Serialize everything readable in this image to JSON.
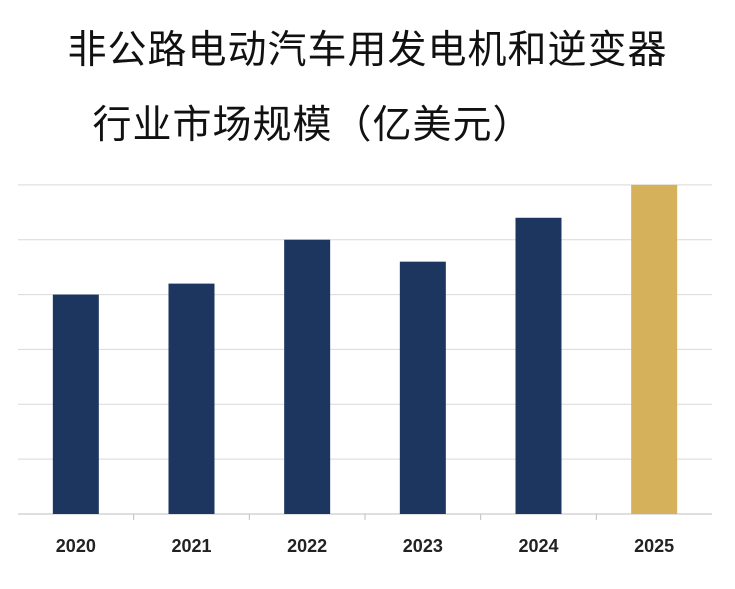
{
  "title": {
    "line1": "非公路电动汽车用发电机和逆变器",
    "line2": "行业市场规模（亿美元）"
  },
  "colors": {
    "primary_bar": "#1d365f",
    "highlight_bar": "#d4b15a",
    "grid": "#d9d9d9"
  },
  "chart_data": {
    "type": "bar",
    "categories": [
      "2020",
      "2021",
      "2022",
      "2023",
      "2024",
      "2025"
    ],
    "values": [
      40,
      42,
      50,
      46,
      54,
      60
    ],
    "highlight_index": 5,
    "title": "非公路电动汽车用发电机和逆变器行业市场规模（亿美元）",
    "xlabel": "",
    "ylabel": "",
    "ylim": [
      0,
      70
    ],
    "grid": true,
    "legend": "none"
  }
}
